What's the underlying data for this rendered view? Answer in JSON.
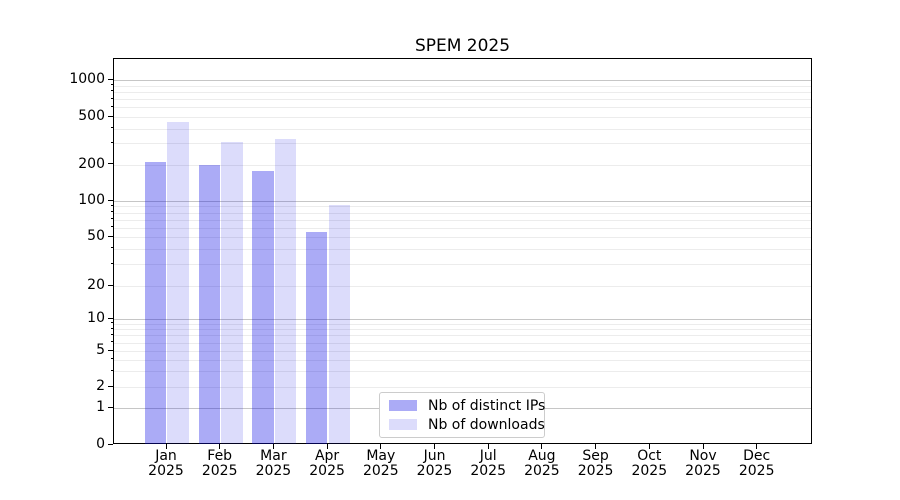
{
  "title": "SPEM 2025",
  "legend": {
    "items": [
      {
        "label": "Nb of distinct IPs"
      },
      {
        "label": "Nb of downloads"
      }
    ]
  },
  "colors": {
    "bar_distinct_ips": "rgba(10,10,230,0.34)",
    "bar_downloads": "rgba(10,10,230,0.14)",
    "grid_major": "#c6c6c6",
    "grid_minor": "#ececec",
    "axis": "#000000",
    "legend_border": "#cccccc"
  },
  "chart_data": {
    "type": "bar",
    "title": "SPEM 2025",
    "x_months": [
      "Jan",
      "Feb",
      "Mar",
      "Apr",
      "May",
      "Jun",
      "Jul",
      "Aug",
      "Sep",
      "Oct",
      "Nov",
      "Dec"
    ],
    "x_year": "2025",
    "series": [
      {
        "name": "Nb of distinct IPs",
        "values": [
          210,
          198,
          176,
          55,
          null,
          null,
          null,
          null,
          null,
          null,
          null,
          null
        ]
      },
      {
        "name": "Nb of downloads",
        "values": [
          450,
          310,
          330,
          93,
          null,
          null,
          null,
          null,
          null,
          null,
          null,
          null
        ]
      }
    ],
    "y_ticks": [
      0,
      1,
      2,
      5,
      10,
      20,
      50,
      100,
      200,
      500,
      1000
    ],
    "y_scale": "symlog",
    "ylim": [
      0,
      1500
    ],
    "grid": true,
    "legend_position": "lower center"
  }
}
